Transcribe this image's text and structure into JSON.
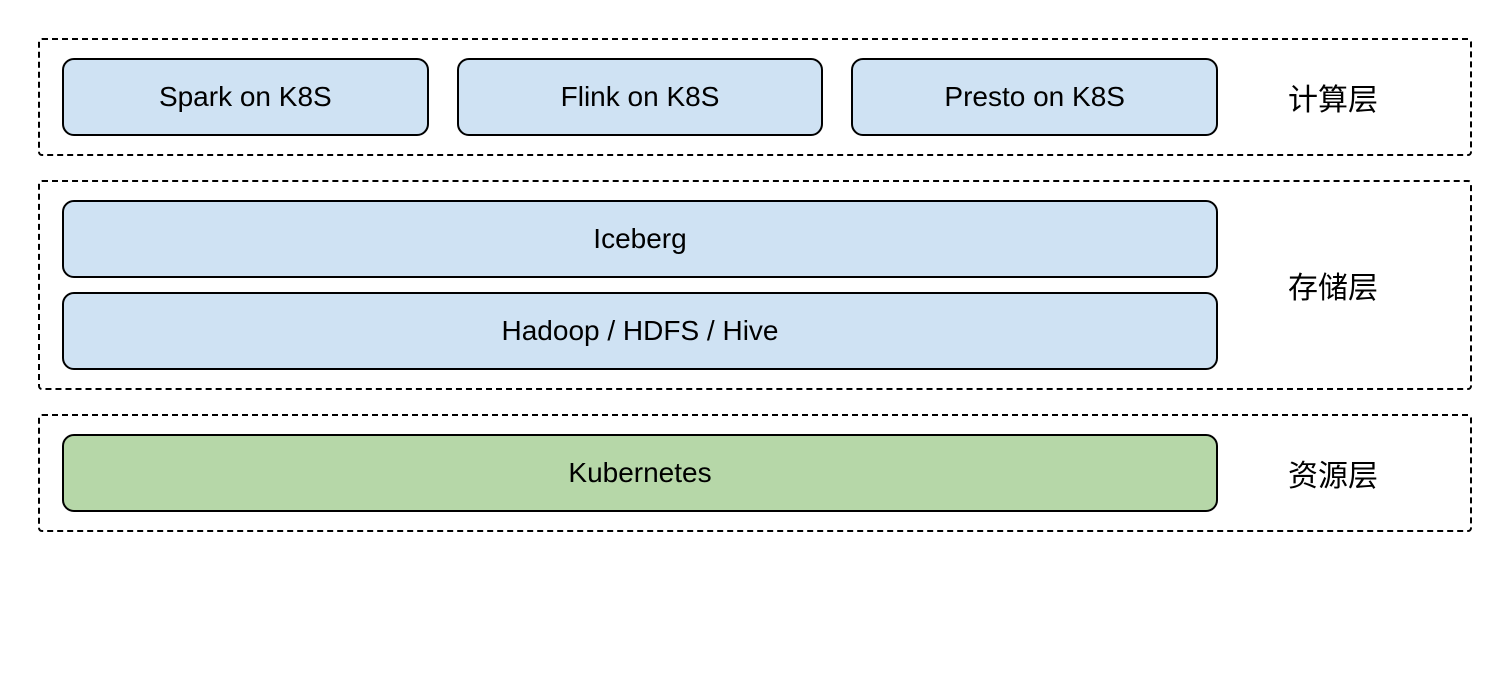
{
  "diagram": {
    "type": "layered-architecture",
    "background_color": "#ffffff",
    "border_color": "#000000",
    "border_style": "dashed",
    "border_radius_outer": 4,
    "border_radius_box": 12,
    "box_border_width": 2,
    "font_family": "Arial",
    "label_fontsize": 30,
    "box_fontsize": 28,
    "layers": [
      {
        "id": "compute",
        "label": "计算层",
        "boxes": [
          {
            "id": "spark",
            "text": "Spark on K8S",
            "bg": "#cfe2f3"
          },
          {
            "id": "flink",
            "text": "Flink on K8S",
            "bg": "#cfe2f3"
          },
          {
            "id": "presto",
            "text": "Presto on K8S",
            "bg": "#cfe2f3"
          }
        ],
        "layout": "row"
      },
      {
        "id": "storage",
        "label": "存储层",
        "boxes": [
          {
            "id": "iceberg",
            "text": "Iceberg",
            "bg": "#cfe2f3"
          },
          {
            "id": "hadoop",
            "text": "Hadoop / HDFS / Hive",
            "bg": "#cfe2f3"
          }
        ],
        "layout": "column"
      },
      {
        "id": "resource",
        "label": "资源层",
        "boxes": [
          {
            "id": "k8s",
            "text": "Kubernetes",
            "bg": "#b6d7a8"
          }
        ],
        "layout": "column"
      }
    ],
    "colors": {
      "blue_box": "#cfe2f3",
      "green_box": "#b6d7a8",
      "text": "#000000"
    }
  }
}
